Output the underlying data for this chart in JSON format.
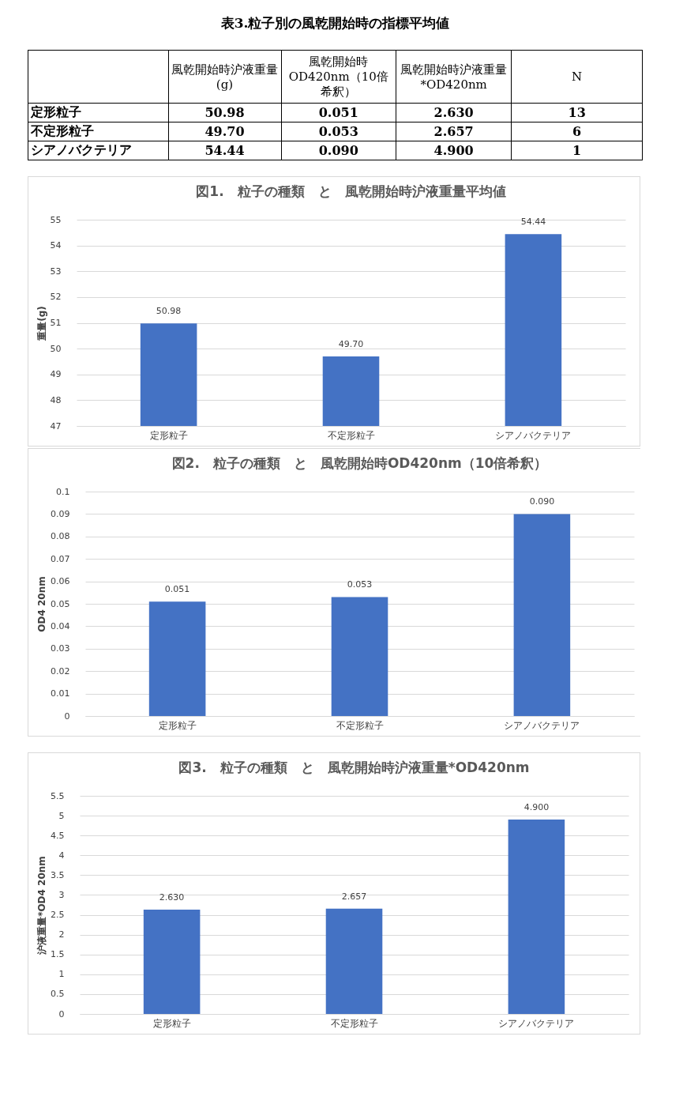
{
  "chart_data": [
    {
      "type": "other",
      "title": "表3.粒子別の風乾開始時の指標平均値",
      "categories": [
        null,
        "風乾開始時沪液重量(g)",
        "風乾開始時OD420nm（10倍希釈）",
        "風乾開始時沪液重量*OD420nm",
        "N"
      ],
      "y_categories": [
        "定形粒子",
        "不定形粒子",
        "シアノバクテリア"
      ],
      "cell_labels": [
        [
          "50.98",
          "0.051",
          "2.630",
          "13"
        ],
        [
          "49.70",
          "0.053",
          "2.657",
          "6"
        ],
        [
          "54.44",
          "0.090",
          "4.900",
          "1"
        ]
      ]
    },
    {
      "type": "bar",
      "title": "図1.　粒子の種類　と　風乾開始時沪液重量平均値",
      "ylabel": "重量(g)",
      "categories": [
        "定形粒子",
        "不定形粒子",
        "シアノバクテリア"
      ],
      "values": [
        50.98,
        49.7,
        54.44
      ],
      "value_labels": [
        "50.98",
        "49.70",
        "54.44"
      ],
      "color": "#4472c4",
      "ylim": [
        47,
        55
      ],
      "yticks": [
        47,
        48,
        49,
        50,
        51,
        52,
        53,
        54,
        55
      ],
      "grid": "y"
    },
    {
      "type": "bar",
      "title": "図2.　粒子の種類　と　風乾開始時OD420nm（10倍希釈）",
      "ylabel": "OD4 20nm",
      "categories": [
        "定形粒子",
        "不定形粒子",
        "シアノバクテリア"
      ],
      "values": [
        0.051,
        0.053,
        0.09
      ],
      "value_labels": [
        "0.051",
        "0.053",
        "0.090"
      ],
      "color": "#4472c4",
      "ylim": [
        0,
        0.1
      ],
      "yticks": [
        0,
        0.01,
        0.02,
        0.03,
        0.04,
        0.05,
        0.06,
        0.07,
        0.08,
        0.09,
        0.1
      ],
      "grid": "y"
    },
    {
      "type": "bar",
      "title": "図3.　粒子の種類　と　風乾開始時沪液重量*OD420nm",
      "ylabel": "沪液重量*OD4 20nm",
      "categories": [
        "定形粒子",
        "不定形粒子",
        "シアノバクテリア"
      ],
      "values": [
        2.63,
        2.657,
        4.9
      ],
      "value_labels": [
        "2.630",
        "2.657",
        "4.900"
      ],
      "color": "#4472c4",
      "ylim": [
        0,
        5.5
      ],
      "yticks": [
        0,
        0.5,
        1,
        1.5,
        2,
        2.5,
        3,
        3.5,
        4,
        4.5,
        5,
        5.5
      ],
      "grid": "y"
    }
  ]
}
